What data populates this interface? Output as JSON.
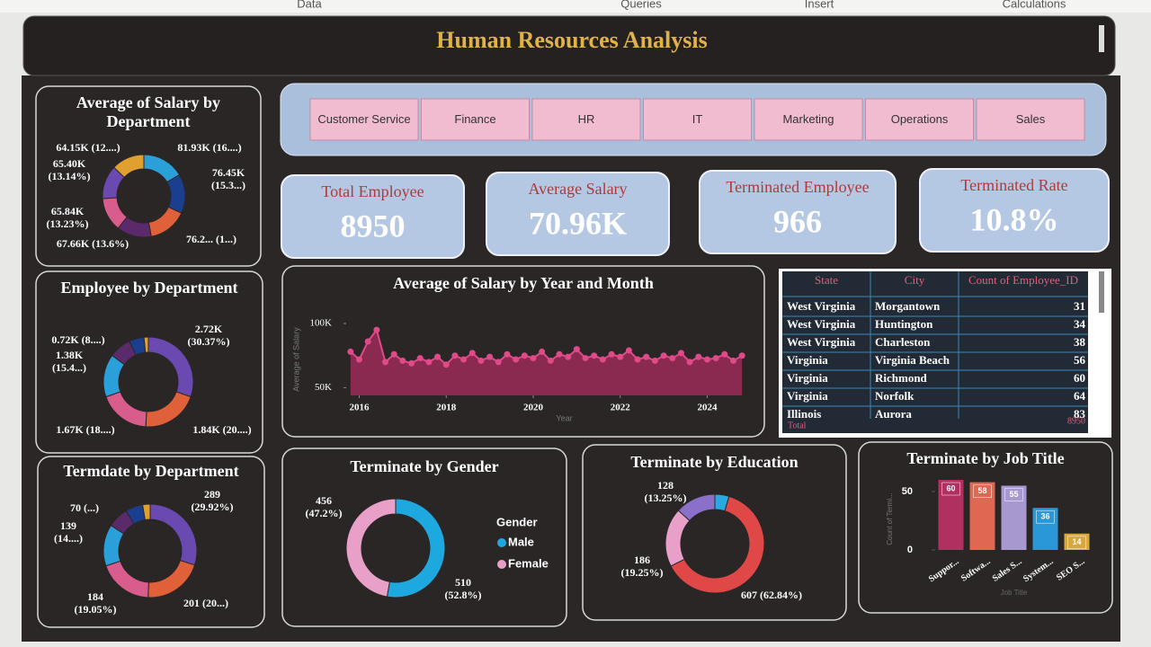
{
  "menu": [
    "Data",
    "Queries",
    "Insert",
    "Calculations"
  ],
  "title": "Human Resources Analysis",
  "slicer": [
    "Customer Service",
    "Finance",
    "HR",
    "IT",
    "Marketing",
    "Operations",
    "Sales"
  ],
  "kpis": [
    {
      "label": "Total Employee",
      "value": "8950"
    },
    {
      "label": "Average Salary",
      "value": "70.96K"
    },
    {
      "label": "Terminated Employee",
      "value": "966"
    },
    {
      "label": "Terminated Rate",
      "value": "10.8%"
    }
  ],
  "table": {
    "columns": [
      "State",
      "City",
      "Count of Employee_ID"
    ],
    "rows": [
      [
        "West Virginia",
        "Morgantown",
        "31"
      ],
      [
        "West Virginia",
        "Huntington",
        "34"
      ],
      [
        "West Virginia",
        "Charleston",
        "38"
      ],
      [
        "Virginia",
        "Virginia Beach",
        "56"
      ],
      [
        "Virginia",
        "Richmond",
        "60"
      ],
      [
        "Virginia",
        "Norfolk",
        "64"
      ],
      [
        "Illinois",
        "Aurora",
        "83"
      ]
    ],
    "total": [
      "Total",
      "8950"
    ]
  },
  "chart_data": [
    {
      "type": "donut",
      "title": "Average of Salary by Department",
      "values": [
        81930,
        76450,
        76200,
        67660,
        65840,
        65400,
        64150
      ],
      "value_labels": [
        "81.93K (16....)",
        "76.45K (15.3...)",
        "76.2... (1...)",
        "67.66K (13.6%)",
        "65.84K (13.23%)",
        "65.40K (13.14%)",
        "64.15K (12....)"
      ],
      "colors": [
        "#2a9fd8",
        "#1a3f8f",
        "#e0603a",
        "#5a2a6a",
        "#d85c8c",
        "#6a4ab0",
        "#e0a030"
      ]
    },
    {
      "type": "donut",
      "title": "Employee by Department",
      "values": [
        2720,
        1840,
        1670,
        1380,
        720,
        480,
        140
      ],
      "value_labels": [
        "2.72K (30.37%)",
        "1.84K (20....)",
        "1.67K (18....)",
        "1.38K (15.4...)",
        "0.72K (8....)",
        null,
        null
      ],
      "colors": [
        "#6a4ab0",
        "#e0603a",
        "#d85c8c",
        "#2a9fd8",
        "#5a2a6a",
        "#1a3f8f",
        "#e0a030"
      ]
    },
    {
      "type": "donut",
      "title": "Termdate by Department",
      "values": [
        289,
        201,
        184,
        139,
        70,
        58,
        25
      ],
      "value_labels": [
        "289 (29.92%)",
        "201 (20...)",
        "184 (19.05%)",
        "139 (14....)",
        "70 (...)",
        null,
        null
      ],
      "colors": [
        "#6a4ab0",
        "#e0603a",
        "#d85c8c",
        "#2a9fd8",
        "#5a2a6a",
        "#1a3f8f",
        "#e0a030"
      ]
    },
    {
      "type": "donut",
      "title": "Terminate by Gender",
      "legend_title": "Gender",
      "categories": [
        "Male",
        "Female"
      ],
      "values": [
        510,
        456
      ],
      "value_labels": [
        "510 (52.8%)",
        "456 (47.2%)"
      ],
      "colors": [
        "#1ea8e0",
        "#e8a0c8"
      ]
    },
    {
      "type": "donut",
      "title": "Terminate by Education",
      "values": [
        45,
        607,
        186,
        128
      ],
      "value_labels": [
        null,
        "607 (62.84%)",
        "186 (19.25%)",
        "128 (13.25%)"
      ],
      "colors": [
        "#2aa8e0",
        "#e04848",
        "#e8a0c8",
        "#8a70c8"
      ]
    },
    {
      "type": "area",
      "title": "Average of Salary by Year and Month",
      "x_label": "Year",
      "y_label": "Average of Salary",
      "x": [
        2015.8,
        2016.0,
        2016.2,
        2016.4,
        2016.6,
        2016.8,
        2017.0,
        2017.2,
        2017.4,
        2017.6,
        2017.8,
        2018.0,
        2018.2,
        2018.4,
        2018.6,
        2018.8,
        2019.0,
        2019.2,
        2019.4,
        2019.6,
        2019.8,
        2020.0,
        2020.2,
        2020.4,
        2020.6,
        2020.8,
        2021.0,
        2021.2,
        2021.4,
        2021.6,
        2021.8,
        2022.0,
        2022.2,
        2022.4,
        2022.6,
        2022.8,
        2023.0,
        2023.2,
        2023.4,
        2023.6,
        2023.8,
        2024.0,
        2024.2,
        2024.4,
        2024.6,
        2024.8
      ],
      "values": [
        78000,
        72000,
        86000,
        95000,
        70000,
        76000,
        71000,
        69000,
        73000,
        70000,
        74000,
        68000,
        75000,
        72000,
        77000,
        71000,
        74000,
        70000,
        76000,
        72000,
        75000,
        73000,
        78000,
        71000,
        76000,
        74000,
        80000,
        73000,
        75000,
        72000,
        76000,
        74000,
        79000,
        72000,
        74000,
        71000,
        75000,
        73000,
        77000,
        70000,
        74000,
        72000,
        73000,
        76000,
        71000,
        75000
      ],
      "color": "#e04a88",
      "fill": "#8a2a50",
      "xlim": [
        2015.7,
        2024.9
      ],
      "xticks": [
        2016,
        2018,
        2020,
        2022,
        2024
      ],
      "ylim": [
        44000,
        114000
      ],
      "yticks": [
        {
          "value": 50000,
          "label": "50K"
        },
        {
          "value": 100000,
          "label": "100K"
        }
      ]
    },
    {
      "type": "bar",
      "title": "Terminate by Job Title",
      "x_label": "Job Title",
      "y_label": "Count of Termi...",
      "categories": [
        "Suppor...",
        "Softwa...",
        "Sales S...",
        "System...",
        "SEO S..."
      ],
      "values": [
        60,
        58,
        55,
        36,
        14
      ],
      "colors": [
        "#b03060",
        "#e06850",
        "#a898d0",
        "#2a98d8",
        "#d8a840"
      ],
      "ylim": [
        0,
        70
      ],
      "yticks": [
        0,
        50
      ]
    }
  ]
}
